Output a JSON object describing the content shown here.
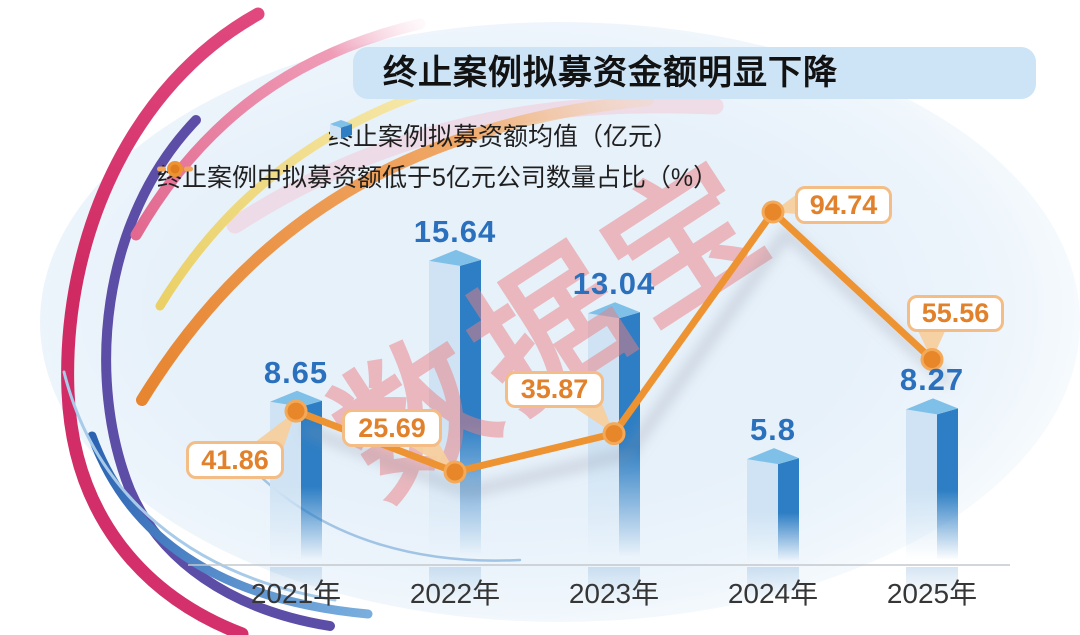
{
  "title": "终止案例拟募资金额明显下降",
  "watermark": "数据宝",
  "legend": [
    {
      "label": "终止案例拟募资额均值（亿元）",
      "icon": "cube-icon",
      "color": "#2d7ec4"
    },
    {
      "label": "终止案例中拟募资额低于5亿元公司数量占比（%）",
      "icon": "line-dot-icon",
      "color": "#ee9331"
    }
  ],
  "chart_data": {
    "type": "bar",
    "subtype": "bar-line-combo",
    "title": "终止案例拟募资金额明显下降",
    "categories": [
      "2021年",
      "2022年",
      "2023年",
      "2024年",
      "2025年"
    ],
    "series": [
      {
        "name": "终止案例拟募资额均值（亿元）",
        "type": "bar",
        "values": [
          8.65,
          15.64,
          13.04,
          5.8,
          8.27
        ],
        "color": "#2d7ec4"
      },
      {
        "name": "终止案例中拟募资额低于5亿元公司数量占比（%）",
        "type": "line",
        "values": [
          41.86,
          25.69,
          35.87,
          94.74,
          55.56
        ],
        "color": "#ee9331"
      }
    ],
    "xlabel": "",
    "ylabel": "",
    "legend_position": "top",
    "grid": false,
    "value_labels_shown": true,
    "bar_axis_range_estimate": [
      0,
      16
    ],
    "line_axis_range_estimate": [
      0,
      100
    ]
  },
  "colors": {
    "panel_bg": "#e7f1fa",
    "title_bar_bg": "#cce4f6",
    "bar_light_face": "#cfe3f4",
    "bar_dark_face": "#2d7ec4",
    "bar_top_face": "#7fc0e9",
    "bar_value_label": "#2a70bd",
    "line": "#ee9331",
    "point_fill": "#e8862a",
    "point_ring": "#f4a958",
    "callout_border": "#f3bd85",
    "callout_text": "#e2812b",
    "pointer_fill": "#f6cf9e",
    "baseline": "#c3c8ce",
    "watermark": "rgba(236,125,128,0.5)",
    "arc_crimson": "#d4306c",
    "arc_purple": "#5c4da6",
    "arc_blue": "#2a62b2",
    "arc_orange": "#e78530",
    "arc_yellow": "#ead066",
    "arc_pink": "#e2688f"
  }
}
